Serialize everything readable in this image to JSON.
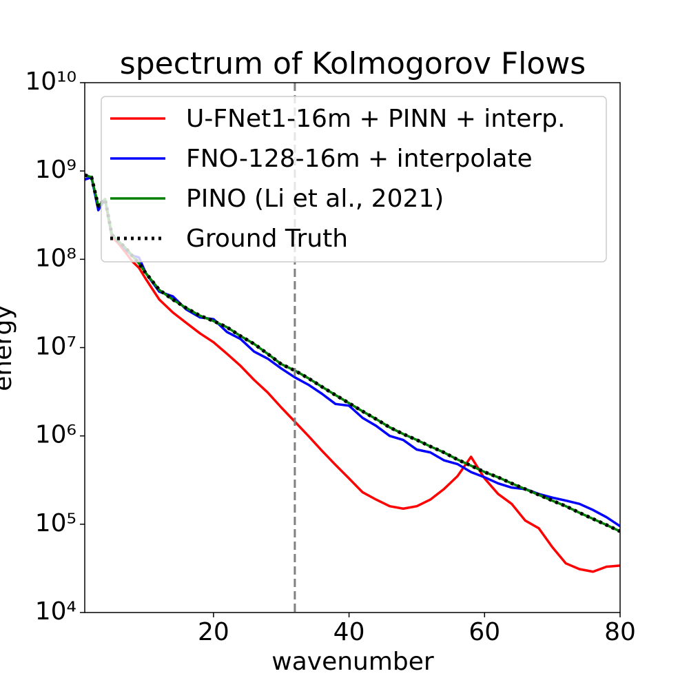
{
  "chart_data": {
    "type": "line",
    "title": "spectrum of Kolmogorov Flows",
    "xlabel": "wavenumber",
    "ylabel": "energy",
    "x": [
      1,
      2,
      3,
      4,
      5,
      6,
      7,
      8,
      9,
      10,
      12,
      14,
      16,
      18,
      20,
      22,
      24,
      26,
      28,
      30,
      32,
      34,
      36,
      38,
      40,
      42,
      44,
      46,
      48,
      50,
      52,
      54,
      56,
      58,
      60,
      62,
      64,
      66,
      68,
      70,
      72,
      74,
      76,
      78,
      80
    ],
    "series": [
      {
        "name": "U-FNet1-16m + PINN + interp.",
        "color": "#ff0000",
        "linestyle": "solid",
        "values": [
          800000000.0,
          850000000.0,
          380000000.0,
          470000000.0,
          180000000.0,
          150000000.0,
          120000000.0,
          95000000.0,
          80000000.0,
          60000000.0,
          35000000.0,
          25000000.0,
          19000000.0,
          14500000.0,
          11500000.0,
          8500000.0,
          6200000.0,
          4300000.0,
          3100000.0,
          2100000.0,
          1450000.0,
          1000000.0,
          680000.0,
          470000.0,
          330000.0,
          230000.0,
          190000.0,
          160000.0,
          150000.0,
          160000.0,
          190000.0,
          250000.0,
          350000.0,
          580000.0,
          330000.0,
          220000.0,
          170000.0,
          110000.0,
          90000.0,
          55000.0,
          36000.0,
          31000.0,
          29000.0,
          33000.0,
          34000.0
        ]
      },
      {
        "name": "FNO-128-16m + interpolate",
        "color": "#0000ff",
        "linestyle": "solid",
        "values": [
          800000000.0,
          850000000.0,
          360000000.0,
          480000000.0,
          190000000.0,
          160000000.0,
          130000000.0,
          110000000.0,
          105000000.0,
          70000000.0,
          43000000.0,
          38000000.0,
          27000000.0,
          22000000.0,
          21000000.0,
          15000000.0,
          12500000.0,
          9000000.0,
          7500000.0,
          5800000.0,
          4600000.0,
          3800000.0,
          3000000.0,
          2300000.0,
          2200000.0,
          1600000.0,
          1300000.0,
          1000000.0,
          900000.0,
          700000.0,
          650000.0,
          530000.0,
          480000.0,
          390000.0,
          340000.0,
          290000.0,
          260000.0,
          250000.0,
          220000.0,
          200000.0,
          185000.0,
          170000.0,
          145000.0,
          120000.0,
          95000.0
        ]
      },
      {
        "name": "PINO (Li et al., 2021)",
        "color": "#008000",
        "linestyle": "solid",
        "values": [
          900000000.0,
          850000000.0,
          400000000.0,
          480000000.0,
          190000000.0,
          160000000.0,
          135000000.0,
          110000000.0,
          90000000.0,
          70000000.0,
          45000000.0,
          35000000.0,
          28000000.0,
          23000000.0,
          20000000.0,
          17000000.0,
          13500000.0,
          11000000.0,
          8500000.0,
          6500000.0,
          5500000.0,
          4500000.0,
          3600000.0,
          2900000.0,
          2350000.0,
          1900000.0,
          1550000.0,
          1250000.0,
          1050000.0,
          900000.0,
          760000.0,
          650000.0,
          540000.0,
          460000.0,
          390000.0,
          340000.0,
          290000.0,
          250000.0,
          215000.0,
          185000.0,
          160000.0,
          135000.0,
          115000.0,
          98000.0,
          83000.0
        ]
      },
      {
        "name": "Ground Truth",
        "color": "#000000",
        "linestyle": "dotted",
        "values": [
          900000000.0,
          850000000.0,
          400000000.0,
          480000000.0,
          190000000.0,
          160000000.0,
          135000000.0,
          110000000.0,
          90000000.0,
          70000000.0,
          45000000.0,
          35000000.0,
          28000000.0,
          23000000.0,
          20000000.0,
          17000000.0,
          13500000.0,
          11000000.0,
          8500000.0,
          6500000.0,
          5500000.0,
          4500000.0,
          3600000.0,
          2900000.0,
          2350000.0,
          1900000.0,
          1550000.0,
          1250000.0,
          1050000.0,
          900000.0,
          760000.0,
          650000.0,
          540000.0,
          460000.0,
          390000.0,
          340000.0,
          290000.0,
          250000.0,
          215000.0,
          185000.0,
          160000.0,
          135000.0,
          115000.0,
          98000.0,
          83000.0
        ]
      }
    ],
    "vline": 32,
    "vline_color": "#808080",
    "xlim": [
      1,
      80
    ],
    "xticks": [
      20,
      40,
      60,
      80
    ],
    "ylim": [
      10000,
      10000000000
    ],
    "yscale": "log",
    "yticks": [
      {
        "value": 10000,
        "label": "10⁴"
      },
      {
        "value": 100000,
        "label": "10⁵"
      },
      {
        "value": 1000000,
        "label": "10⁶"
      },
      {
        "value": 10000000,
        "label": "10⁷"
      },
      {
        "value": 100000000,
        "label": "10⁸"
      },
      {
        "value": 1000000000,
        "label": "10⁹"
      },
      {
        "value": 10000000000,
        "label": "10¹⁰"
      }
    ],
    "grid": false,
    "legend": "upper right"
  }
}
